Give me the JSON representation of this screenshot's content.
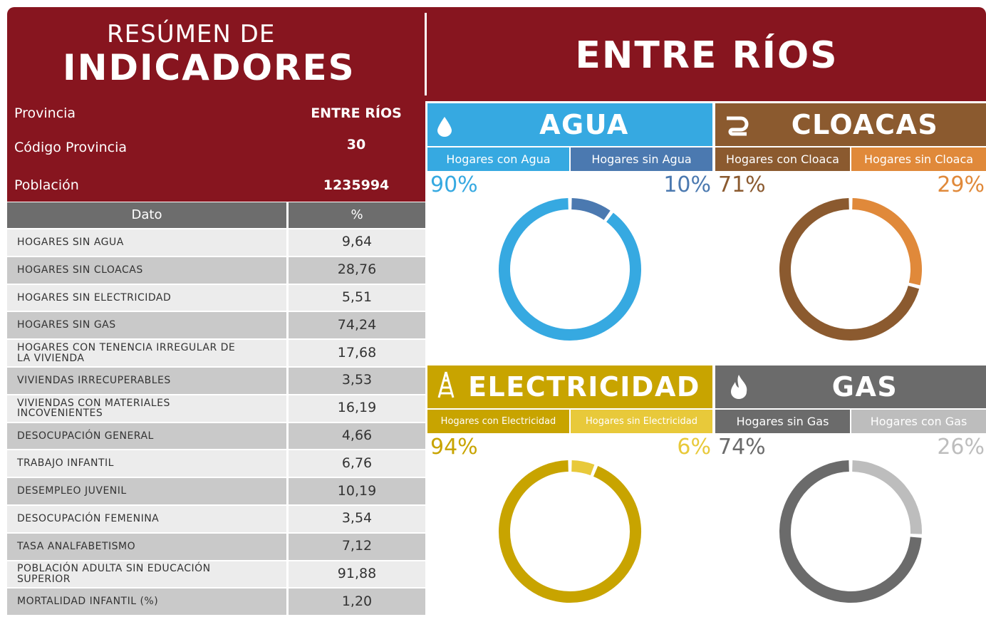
{
  "header": {
    "title_top": "RESÚMEN DE",
    "title_main": "INDICADORES",
    "province_title": "ENTRE RÍOS"
  },
  "info": [
    {
      "label": "Provincia",
      "value": "ENTRE RÍOS"
    },
    {
      "label": "Código Provincia",
      "value": "30"
    },
    {
      "label": "Población",
      "value": "1235994"
    }
  ],
  "table": {
    "columns": [
      "Dato",
      "%"
    ],
    "rows": [
      [
        "HOGARES SIN AGUA",
        "9,64"
      ],
      [
        "HOGARES SIN CLOACAS",
        "28,76"
      ],
      [
        "HOGARES SIN ELECTRICIDAD",
        "5,51"
      ],
      [
        "HOGARES SIN GAS",
        "74,24"
      ],
      [
        "HOGARES CON TENENCIA IRREGULAR DE LA VIVIENDA",
        "17,68"
      ],
      [
        "VIVIENDAS IRRECUPERABLES",
        "3,53"
      ],
      [
        "VIVIENDAS CON MATERIALES INCOVENIENTES",
        "16,19"
      ],
      [
        "DESOCUPACIÓN GENERAL",
        "4,66"
      ],
      [
        "TRABAJO INFANTIL",
        "6,76"
      ],
      [
        "DESEMPLEO JUVENIL",
        "10,19"
      ],
      [
        "DESOCUPACIÓN FEMENINA",
        "3,54"
      ],
      [
        "TASA ANALFABETISMO",
        "7,12"
      ],
      [
        "POBLACIÓN ADULTA SIN EDUCACIÓN SUPERIOR",
        "91,88"
      ],
      [
        "MORTALIDAD INFANTIL (%)",
        "1,20"
      ]
    ]
  },
  "chart_data": [
    {
      "type": "donut",
      "title": "AGUA",
      "color": "#36a9e1",
      "categories": [
        "Hogares con Agua",
        "Hogares sin Agua"
      ],
      "values": [
        90,
        10
      ],
      "value_labels": [
        "90%",
        "10%"
      ],
      "colors": [
        "#36a9e1",
        "#4b79b0"
      ]
    },
    {
      "type": "donut",
      "title": "CLOACAS",
      "color": "#8b5a2f",
      "categories": [
        "Hogares con Cloaca",
        "Hogares sin Cloaca"
      ],
      "values": [
        71,
        29
      ],
      "value_labels": [
        "71%",
        "29%"
      ],
      "colors": [
        "#8b5a2f",
        "#e0893a"
      ]
    },
    {
      "type": "donut",
      "title": "ELECTRICIDAD",
      "color": "#c8a400",
      "categories": [
        "Hogares con Electricidad",
        "Hogares sin Electricidad"
      ],
      "values": [
        94,
        6
      ],
      "value_labels": [
        "94%",
        "6%"
      ],
      "colors": [
        "#c8a400",
        "#e8c93a"
      ]
    },
    {
      "type": "donut",
      "title": "GAS",
      "color": "#6b6b6b",
      "categories": [
        "Hogares sin Gas",
        "Hogares con Gas"
      ],
      "values": [
        74,
        26
      ],
      "value_labels": [
        "74%",
        "26%"
      ],
      "colors": [
        "#6b6b6b",
        "#bdbdbd"
      ]
    }
  ]
}
